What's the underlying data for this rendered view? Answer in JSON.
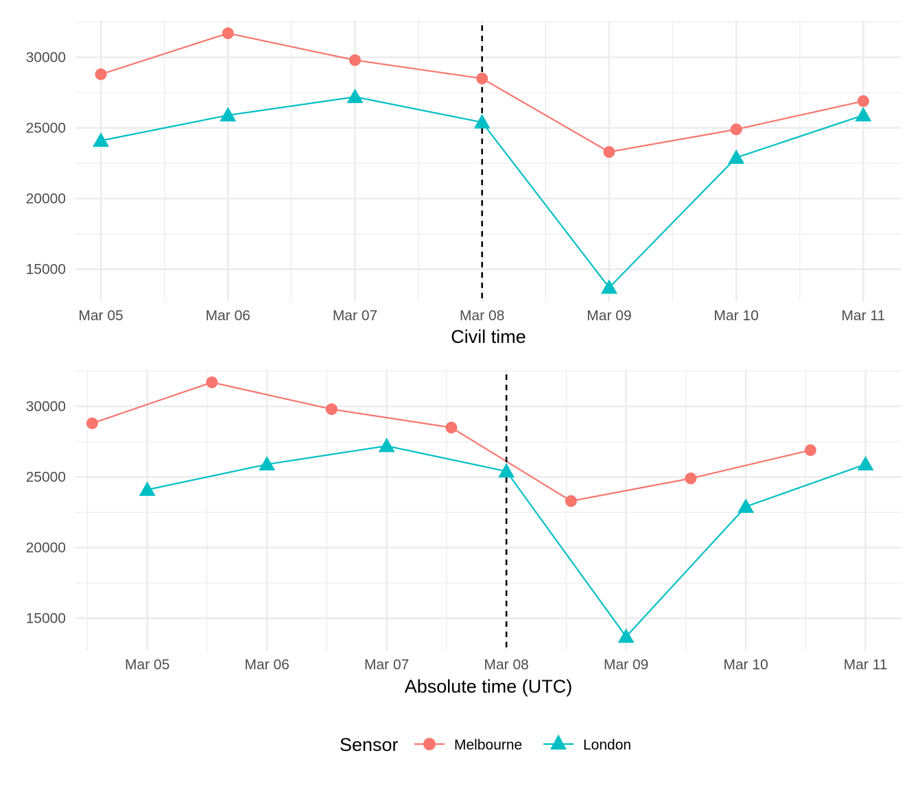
{
  "chart_data": [
    {
      "type": "line",
      "title": "",
      "xlabel": "Civil time",
      "ylabel": "",
      "x_ticks": [
        "Mar 05",
        "Mar 06",
        "Mar 07",
        "Mar 08",
        "Mar 09",
        "Mar 10",
        "Mar 11"
      ],
      "xlim_days": [
        4.8,
        11.3
      ],
      "ylim": [
        12700,
        32600
      ],
      "y_ticks": [
        15000,
        20000,
        25000,
        30000
      ],
      "vline_day": 8,
      "series": [
        {
          "name": "Melbourne",
          "marker": "circle",
          "x_days": [
            5,
            6,
            7,
            8,
            9,
            10,
            11
          ],
          "values": [
            28800,
            31700,
            29800,
            28500,
            23300,
            24900,
            26900
          ]
        },
        {
          "name": "London",
          "marker": "triangle",
          "x_days": [
            5,
            6,
            7,
            8,
            9,
            10,
            11
          ],
          "values": [
            24100,
            25900,
            27200,
            25400,
            13700,
            22900,
            25900
          ]
        }
      ]
    },
    {
      "type": "line",
      "title": "",
      "xlabel": "Absolute time (UTC)",
      "ylabel": "",
      "x_ticks": [
        "Mar 05",
        "Mar 06",
        "Mar 07",
        "Mar 08",
        "Mar 09",
        "Mar 10",
        "Mar 11"
      ],
      "xlim_days": [
        4.4,
        11.3
      ],
      "ylim": [
        12700,
        32600
      ],
      "y_ticks": [
        15000,
        20000,
        25000,
        30000
      ],
      "vline_day": 8,
      "series": [
        {
          "name": "Melbourne",
          "marker": "circle",
          "x_days": [
            4.54,
            5.54,
            6.54,
            7.54,
            8.54,
            9.54,
            10.54
          ],
          "values": [
            28800,
            31700,
            29800,
            28500,
            23300,
            24900,
            26900
          ]
        },
        {
          "name": "London",
          "marker": "triangle",
          "x_days": [
            5,
            6,
            7,
            8,
            9,
            10,
            11
          ],
          "values": [
            24100,
            25900,
            27200,
            25400,
            13700,
            22900,
            25900
          ]
        }
      ]
    }
  ],
  "legend": {
    "title": "Sensor",
    "items": [
      {
        "label": "Melbourne",
        "marker": "circle",
        "color": "#F8766D"
      },
      {
        "label": "London",
        "marker": "triangle",
        "color": "#00BFC4"
      }
    ]
  },
  "colors": {
    "Melbourne": "#F8766D",
    "London": "#00BFC4",
    "grid": "#ebebeb",
    "vline": "#000000"
  }
}
